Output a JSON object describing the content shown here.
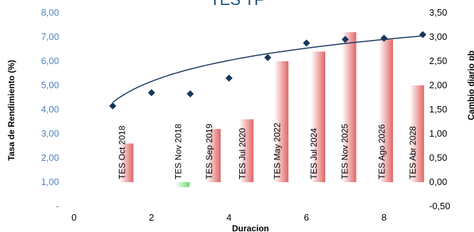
{
  "chart_data": {
    "type": "bar",
    "title": "TES TF",
    "xlabel": "Duracion",
    "ylabel_left": "Tasa de Rendimiento (%)",
    "ylabel_right": "Cambio diario pb",
    "x_ticks": [
      "0",
      "2",
      "4",
      "6",
      "8"
    ],
    "xlim": [
      0,
      9
    ],
    "left_ticks": [
      "-",
      "1,00",
      "2,00",
      "3,00",
      "4,00",
      "5,00",
      "6,00",
      "7,00",
      "8,00"
    ],
    "ylim_left": [
      0,
      8
    ],
    "right_ticks": [
      "-0,50",
      "0,00",
      "0,50",
      "1,00",
      "1,50",
      "2,00",
      "2,50",
      "3,00",
      "3,50"
    ],
    "ylim_right": [
      -0.5,
      3.5
    ],
    "bar_series": {
      "axis": "right",
      "labels": [
        "TES Oct 2018",
        "TES Nov 2018",
        "TES Sep 2019",
        "TES Jul 2020",
        "TES May 2022",
        "TES Jul 2024",
        "TES Nov 2025",
        "TES Ago 2026",
        "TES Abr 2028"
      ],
      "x": [
        1.35,
        2.8,
        3.6,
        4.45,
        5.35,
        6.3,
        7.1,
        8.05,
        8.85
      ],
      "values": [
        0.8,
        -0.1,
        1.1,
        1.3,
        2.5,
        2.7,
        3.1,
        2.95,
        2.0
      ],
      "positive_color": "#e06666",
      "negative_color": "#66dd66"
    },
    "scatter_series": {
      "axis": "left",
      "marker_color": "#17375e",
      "x": [
        1.0,
        2.0,
        3.0,
        4.0,
        5.0,
        6.0,
        7.0,
        8.0,
        9.0
      ],
      "y": [
        4.15,
        4.7,
        4.65,
        5.3,
        6.15,
        6.75,
        6.9,
        6.95,
        7.1
      ]
    },
    "trendline": {
      "type": "logarithmic",
      "a": 4.3,
      "b": 1.25,
      "color": "#17375e"
    },
    "grid": false,
    "legend": "none"
  }
}
